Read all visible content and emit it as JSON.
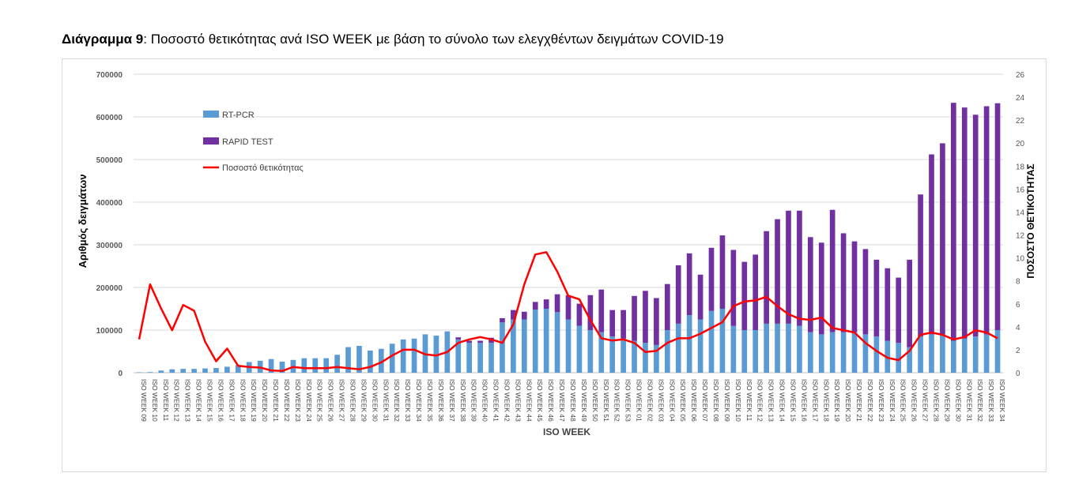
{
  "caption": {
    "label": "Διάγραμμα 9",
    "text": ": Ποσοστό θετικότητας ανά ISO WEEK με βάση το σύνολο των ελεγχθέντων δειγμάτων COVID-19"
  },
  "chart_data": {
    "type": "bar",
    "stacked": true,
    "xlabel": "ISO WEEK",
    "ylabel": "Αριθμός δειγμάτων",
    "y2label": "ΠΟΣΟΣΤΟ ΘΕΤΙΚΟΤΗΤΑΣ",
    "ylim": [
      0,
      700000
    ],
    "yticks": [
      "0",
      "100000",
      "200000",
      "300000",
      "400000",
      "500000",
      "600000",
      "700000"
    ],
    "y2lim": [
      0,
      26
    ],
    "y2ticks": [
      "0",
      "2",
      "4",
      "6",
      "8",
      "10",
      "12",
      "14",
      "16",
      "18",
      "20",
      "22",
      "24",
      "26"
    ],
    "legend_position": "top-left",
    "grid": true,
    "categories": [
      "ISO WEEK 09",
      "ISO WEEK 10",
      "ISO WEEK 11",
      "ISO WEEK 12",
      "ISO WEEK 13",
      "ISO WEEK 14",
      "ISO WEEK 15",
      "ISO WEEK 16",
      "ISO WEEK 17",
      "ISO WEEK 18",
      "ISO WEEK 19",
      "ISO WEEK 20",
      "ISO WEEK 21",
      "ISO WEEK 22",
      "ISO WEEK 23",
      "ISO WEEK 24",
      "ISO WEEK 25",
      "ISO WEEK 26",
      "ISO WEEK 27",
      "ISO WEEK 28",
      "ISO WEEK 29",
      "ISO WEEK 30",
      "ISO WEEK 31",
      "ISO WEEK 32",
      "ISO WEEK 33",
      "ISO WEEK 34",
      "ISO WEEK 35",
      "ISO WEEK 36",
      "ISO WEEK 37",
      "ISO WEEK 38",
      "ISO WEEK 39",
      "ISO WEEK 40",
      "ISO WEEK 41",
      "ISO WEEK 42",
      "ISO WEEK 43",
      "ISO WEEK 44",
      "ISO WEEK 45",
      "ISO WEEK 46",
      "ISO WEEK 47",
      "ISO WEEK 48",
      "ISO WEEK 49",
      "ISO WEEK 50",
      "ISO WEEK 51",
      "ISO WEEK 52",
      "ISO WEEK 53",
      "ISO WEEK 01",
      "ISO WEEK 02",
      "ISO WEEK 03",
      "ISO WEEK 04",
      "ISO WEEK 05",
      "ISO WEEK 06",
      "ISO WEEK 07",
      "ISO WEEK 08",
      "ISO WEEK 09",
      "ISO WEEK 10",
      "ISO WEEK 11",
      "ISO WEEK 12",
      "ISO WEEK 13",
      "ISO WEEK 14",
      "ISO WEEK 15",
      "ISO WEEK 16",
      "ISO WEEK 17",
      "ISO WEEK 18",
      "ISO WEEK 19",
      "ISO WEEK 20",
      "ISO WEEK 21",
      "ISO WEEK 22",
      "ISO WEEK 23",
      "ISO WEEK 24",
      "ISO WEEK 25",
      "ISO WEEK 26",
      "ISO WEEK 27",
      "ISO WEEK 28",
      "ISO WEEK 29",
      "ISO WEEK 30",
      "ISO WEEK 31",
      "ISO WEEK 32",
      "ISO WEEK 33",
      "ISO WEEK 34"
    ],
    "series": [
      {
        "name": "RT-PCR",
        "type": "bar",
        "axis": "left",
        "color": "#5B9BD5",
        "values": [
          1000,
          1500,
          5000,
          8000,
          9000,
          9000,
          10000,
          11000,
          14000,
          18000,
          25000,
          28000,
          32000,
          26000,
          30000,
          34000,
          34000,
          34000,
          42000,
          60000,
          63000,
          52000,
          56000,
          68000,
          78000,
          80000,
          90000,
          87000,
          97000,
          78000,
          70000,
          70000,
          70000,
          118000,
          125000,
          125000,
          148000,
          150000,
          142000,
          125000,
          110000,
          100000,
          95000,
          85000,
          80000,
          75000,
          70000,
          65000,
          100000,
          115000,
          135000,
          125000,
          145000,
          150000,
          110000,
          100000,
          100000,
          115000,
          115000,
          115000,
          110000,
          95000,
          90000,
          95000,
          95000,
          95000,
          90000,
          85000,
          75000,
          70000,
          60000,
          85000,
          90000,
          90000,
          75000,
          80000,
          85000,
          90000,
          100000
        ]
      },
      {
        "name": "RAPID TEST",
        "type": "bar",
        "axis": "left",
        "color": "#7030A0",
        "values": [
          0,
          0,
          0,
          0,
          0,
          0,
          0,
          0,
          0,
          0,
          0,
          0,
          0,
          0,
          0,
          0,
          0,
          0,
          0,
          0,
          0,
          0,
          0,
          0,
          0,
          0,
          0,
          0,
          0,
          5000,
          5000,
          5000,
          12000,
          10000,
          22000,
          18000,
          18000,
          22000,
          42000,
          57000,
          52000,
          82000,
          100000,
          62000,
          67000,
          105000,
          122000,
          110000,
          108000,
          137000,
          145000,
          105000,
          148000,
          172000,
          178000,
          160000,
          177000,
          217000,
          245000,
          265000,
          270000,
          223000,
          215000,
          287000,
          232000,
          213000,
          200000,
          180000,
          170000,
          153000,
          205000,
          333000,
          422000,
          448000,
          558000,
          542000,
          520000,
          535000,
          532000
        ]
      },
      {
        "name": "Ποσοστό θετικότητας",
        "type": "line",
        "axis": "right",
        "color": "#FF0000",
        "values": [
          2.9,
          7.7,
          5.6,
          3.7,
          5.9,
          5.4,
          2.7,
          1.0,
          2.1,
          0.6,
          0.5,
          0.45,
          0.2,
          0.15,
          0.5,
          0.4,
          0.4,
          0.4,
          0.5,
          0.4,
          0.3,
          0.5,
          0.9,
          1.5,
          2.0,
          2.0,
          1.6,
          1.5,
          1.8,
          2.6,
          2.9,
          3.1,
          2.9,
          2.6,
          4.2,
          7.7,
          10.3,
          10.5,
          8.8,
          6.7,
          6.4,
          4.6,
          3.0,
          2.8,
          2.9,
          2.6,
          1.8,
          1.9,
          2.6,
          3.0,
          3.0,
          3.4,
          3.9,
          4.4,
          5.8,
          6.2,
          6.3,
          6.6,
          5.8,
          5.1,
          4.7,
          4.6,
          4.8,
          3.9,
          3.7,
          3.5,
          2.6,
          1.9,
          1.3,
          1.1,
          1.9,
          3.3,
          3.5,
          3.3,
          2.9,
          3.1,
          3.7,
          3.5,
          3.0
        ]
      }
    ]
  }
}
